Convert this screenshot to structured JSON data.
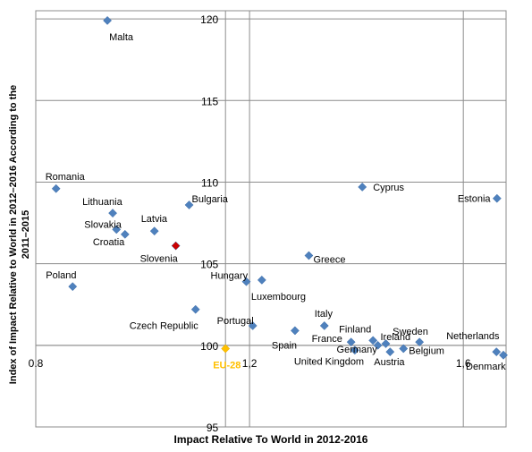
{
  "chart_data": {
    "type": "scatter",
    "xlabel": "Impact Relative To World in 2012-2016",
    "ylabel": "Index of Impact Relative to World in 2012–2016 According to the 2011–2015",
    "xlim": [
      0.8,
      1.68
    ],
    "ylim": [
      95,
      120.5
    ],
    "x_ticks": [
      {
        "value": 0.8,
        "label": "0.8"
      },
      {
        "value": 1.2,
        "label": "1,2"
      },
      {
        "value": 1.6,
        "label": "1,6"
      }
    ],
    "y_ticks": [
      95,
      100,
      105,
      110,
      115,
      120
    ],
    "reference_lines": {
      "x": 1.155,
      "y": 100
    },
    "grid": true,
    "colors": {
      "country": "#4F81BD",
      "highlight": "#CC0000",
      "reference": "#FFC000"
    },
    "points": [
      {
        "name": "Malta",
        "x": 0.934,
        "y": 119.9
      },
      {
        "name": "Romania",
        "x": 0.838,
        "y": 109.6
      },
      {
        "name": "Lithuania",
        "x": 0.944,
        "y": 108.1
      },
      {
        "name": "Slovakia",
        "x": 0.951,
        "y": 107.1
      },
      {
        "name": "Croatia",
        "x": 0.967,
        "y": 106.8
      },
      {
        "name": "Latvia",
        "x": 1.022,
        "y": 107.0
      },
      {
        "name": "Bulgaria",
        "x": 1.087,
        "y": 108.6
      },
      {
        "name": "Slovenia",
        "x": 1.062,
        "y": 106.1,
        "highlight": true
      },
      {
        "name": "Poland",
        "x": 0.869,
        "y": 103.6
      },
      {
        "name": "Hungary",
        "x": 1.194,
        "y": 103.9
      },
      {
        "name": "Luxembourg",
        "x": 1.223,
        "y": 104.0
      },
      {
        "name": "Czech Republic",
        "x": 1.099,
        "y": 102.2
      },
      {
        "name": "Greece",
        "x": 1.311,
        "y": 105.5
      },
      {
        "name": "Cyprus",
        "x": 1.411,
        "y": 109.7
      },
      {
        "name": "Estonia",
        "x": 1.663,
        "y": 109.0
      },
      {
        "name": "Portugal",
        "x": 1.206,
        "y": 101.2
      },
      {
        "name": "Spain",
        "x": 1.285,
        "y": 100.9
      },
      {
        "name": "Italy",
        "x": 1.34,
        "y": 101.2
      },
      {
        "name": "France",
        "x": 1.39,
        "y": 100.2
      },
      {
        "name": "United Kingdom",
        "x": 1.397,
        "y": 99.7
      },
      {
        "name": "Finland",
        "x": 1.431,
        "y": 100.3
      },
      {
        "name": "Germany",
        "x": 1.44,
        "y": 100.0
      },
      {
        "name": "Ireland",
        "x": 1.455,
        "y": 100.1
      },
      {
        "name": "Austria",
        "x": 1.463,
        "y": 99.6
      },
      {
        "name": "Belgium",
        "x": 1.488,
        "y": 99.8
      },
      {
        "name": "Sweden",
        "x": 1.518,
        "y": 100.2
      },
      {
        "name": "Netherlands",
        "x": 1.662,
        "y": 99.6
      },
      {
        "name": "Denmark",
        "x": 1.675,
        "y": 99.4
      },
      {
        "name": "EU-28",
        "x": 1.155,
        "y": 99.8,
        "reference": true
      }
    ]
  }
}
